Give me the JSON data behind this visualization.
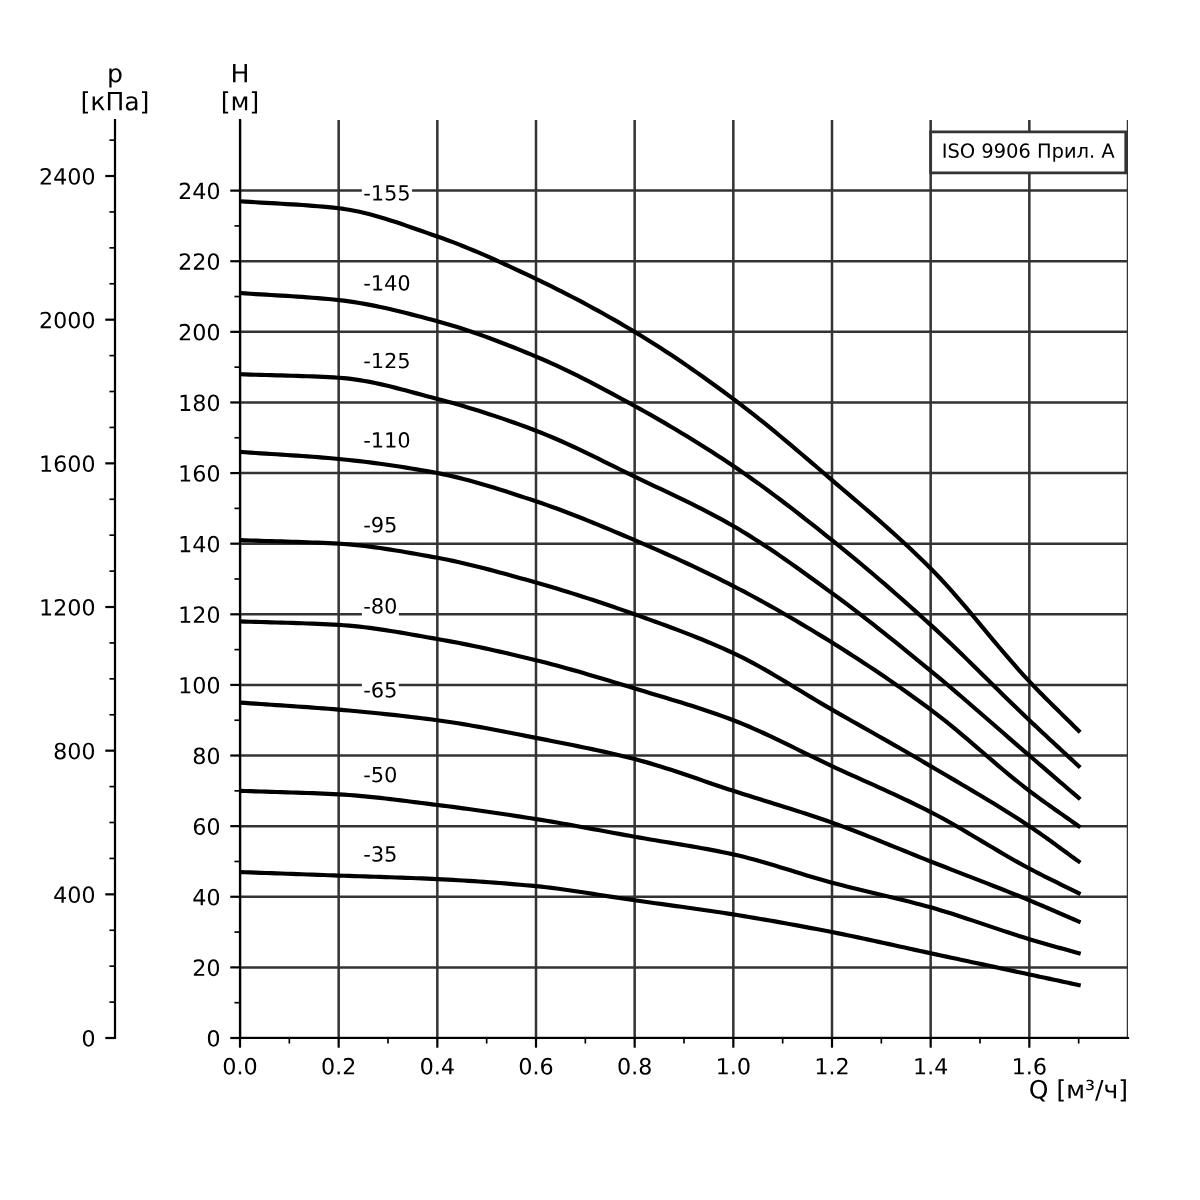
{
  "chart_data": {
    "type": "line",
    "xlabel": "Q [м³/ч]",
    "ylabel": "H\n[м]",
    "y2label": "p\n[кПа]",
    "x": [
      0,
      0.2,
      0.4,
      0.6,
      0.8,
      1.0,
      1.2,
      1.4,
      1.6,
      1.7
    ],
    "series": [
      {
        "name": "-155",
        "color": "#000000",
        "values": [
          237,
          235,
          227,
          215,
          200,
          181,
          158,
          133,
          101,
          87
        ]
      },
      {
        "name": "-140",
        "color": "#000000",
        "values": [
          211,
          209,
          203,
          193,
          179,
          162,
          141,
          117,
          90,
          77
        ]
      },
      {
        "name": "-125",
        "color": "#000000",
        "values": [
          188,
          187,
          181,
          172,
          159,
          145,
          126,
          104,
          80,
          68
        ]
      },
      {
        "name": "-110",
        "color": "#000000",
        "values": [
          166,
          164,
          160,
          152,
          141,
          128,
          112,
          93,
          70,
          60
        ]
      },
      {
        "name": "-95",
        "color": "#000000",
        "values": [
          141,
          140,
          136,
          129,
          120,
          109,
          93,
          77,
          60,
          50
        ]
      },
      {
        "name": "-80",
        "color": "#000000",
        "values": [
          118,
          117,
          113,
          107,
          99,
          90,
          77,
          64,
          48,
          41
        ]
      },
      {
        "name": "-65",
        "color": "#000000",
        "values": [
          95,
          93,
          90,
          85,
          79,
          70,
          61,
          50,
          39,
          33
        ]
      },
      {
        "name": "-50",
        "color": "#000000",
        "values": [
          70,
          69,
          66,
          62,
          57,
          52,
          44,
          37,
          28,
          24
        ]
      },
      {
        "name": "-35",
        "color": "#000000",
        "values": [
          47,
          46,
          45,
          43,
          39,
          35,
          30,
          24,
          18,
          15
        ]
      }
    ],
    "xlim": [
      0,
      1.8
    ],
    "xticks": [
      {
        "value": 0,
        "label": "0.0"
      },
      0.2,
      0.4,
      0.6,
      0.8,
      {
        "value": 1.0,
        "label": "1.0"
      },
      1.2,
      1.4,
      1.6
    ],
    "ylim": [
      0,
      260
    ],
    "yticks": [
      0,
      20,
      40,
      60,
      80,
      100,
      120,
      140,
      160,
      180,
      200,
      220,
      240
    ],
    "y2lim": [
      0,
      2556
    ],
    "y2ticks": [
      0,
      400,
      800,
      1200,
      1600,
      2000,
      2400
    ],
    "grid": true,
    "marker": "none",
    "line_style": "solid",
    "annotations": [
      "ISO 9906 Прил. A"
    ]
  }
}
